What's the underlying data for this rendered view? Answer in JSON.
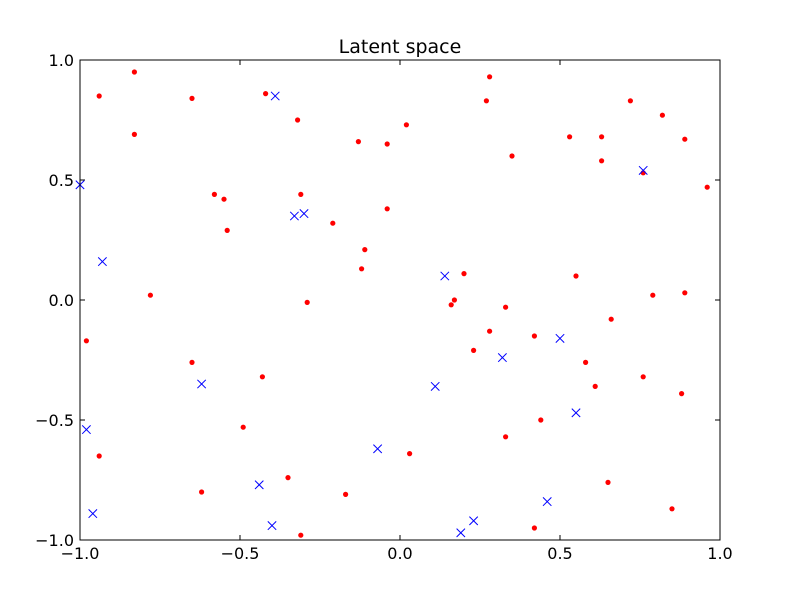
{
  "chart_data": {
    "type": "scatter",
    "title": "Latent space",
    "xlabel": "",
    "ylabel": "",
    "xlim": [
      -1.0,
      1.0
    ],
    "ylim": [
      -1.0,
      1.0
    ],
    "xticks": [
      -1.0,
      -0.5,
      0.0,
      0.5,
      1.0
    ],
    "yticks": [
      -1.0,
      -0.5,
      0.0,
      0.5,
      1.0
    ],
    "xtick_labels": [
      "−1.0",
      "−0.5",
      "0.0",
      "0.5",
      "1.0"
    ],
    "ytick_labels": [
      "−1.0",
      "−0.5",
      "0.0",
      "0.5",
      "1.0"
    ],
    "grid": false,
    "legend": "none",
    "series": [
      {
        "marker": "dot",
        "color": "#ff0000",
        "points": [
          [
            -0.83,
            0.95
          ],
          [
            -0.94,
            0.85
          ],
          [
            -0.65,
            0.84
          ],
          [
            -0.42,
            0.86
          ],
          [
            -0.32,
            0.75
          ],
          [
            -0.83,
            0.69
          ],
          [
            -0.13,
            0.66
          ],
          [
            -0.04,
            0.65
          ],
          [
            0.02,
            0.73
          ],
          [
            0.28,
            0.93
          ],
          [
            0.27,
            0.83
          ],
          [
            0.35,
            0.6
          ],
          [
            0.53,
            0.68
          ],
          [
            0.63,
            0.68
          ],
          [
            0.72,
            0.83
          ],
          [
            0.82,
            0.77
          ],
          [
            0.89,
            0.67
          ],
          [
            0.63,
            0.58
          ],
          [
            0.76,
            0.53
          ],
          [
            0.96,
            0.47
          ],
          [
            -0.58,
            0.44
          ],
          [
            -0.55,
            0.42
          ],
          [
            -0.31,
            0.44
          ],
          [
            -0.54,
            0.29
          ],
          [
            -0.04,
            0.38
          ],
          [
            -0.21,
            0.32
          ],
          [
            -0.11,
            0.21
          ],
          [
            -0.12,
            0.13
          ],
          [
            0.2,
            0.11
          ],
          [
            0.55,
            0.1
          ],
          [
            -0.78,
            0.02
          ],
          [
            -0.29,
            -0.01
          ],
          [
            0.17,
            0.0
          ],
          [
            0.16,
            -0.02
          ],
          [
            0.33,
            -0.03
          ],
          [
            0.79,
            0.02
          ],
          [
            0.89,
            0.03
          ],
          [
            -0.98,
            -0.17
          ],
          [
            0.28,
            -0.13
          ],
          [
            0.42,
            -0.15
          ],
          [
            0.66,
            -0.08
          ],
          [
            0.23,
            -0.21
          ],
          [
            -0.65,
            -0.26
          ],
          [
            -0.43,
            -0.32
          ],
          [
            0.58,
            -0.26
          ],
          [
            0.61,
            -0.36
          ],
          [
            0.76,
            -0.32
          ],
          [
            0.88,
            -0.39
          ],
          [
            -0.49,
            -0.53
          ],
          [
            0.44,
            -0.5
          ],
          [
            0.33,
            -0.57
          ],
          [
            -0.94,
            -0.65
          ],
          [
            0.03,
            -0.64
          ],
          [
            -0.62,
            -0.8
          ],
          [
            -0.35,
            -0.74
          ],
          [
            -0.17,
            -0.81
          ],
          [
            0.65,
            -0.76
          ],
          [
            0.42,
            -0.95
          ],
          [
            0.85,
            -0.87
          ],
          [
            -0.31,
            -0.98
          ]
        ]
      },
      {
        "marker": "x",
        "color": "#0000ff",
        "points": [
          [
            -0.39,
            0.85
          ],
          [
            -1.0,
            0.48
          ],
          [
            0.76,
            0.54
          ],
          [
            -0.33,
            0.35
          ],
          [
            -0.3,
            0.36
          ],
          [
            -0.93,
            0.16
          ],
          [
            0.14,
            0.1
          ],
          [
            0.5,
            -0.16
          ],
          [
            0.32,
            -0.24
          ],
          [
            -0.62,
            -0.35
          ],
          [
            0.11,
            -0.36
          ],
          [
            0.55,
            -0.47
          ],
          [
            -0.98,
            -0.54
          ],
          [
            -0.07,
            -0.62
          ],
          [
            -0.44,
            -0.77
          ],
          [
            -0.96,
            -0.89
          ],
          [
            0.46,
            -0.84
          ],
          [
            0.23,
            -0.92
          ],
          [
            -0.4,
            -0.94
          ],
          [
            0.19,
            -0.97
          ]
        ]
      }
    ]
  }
}
